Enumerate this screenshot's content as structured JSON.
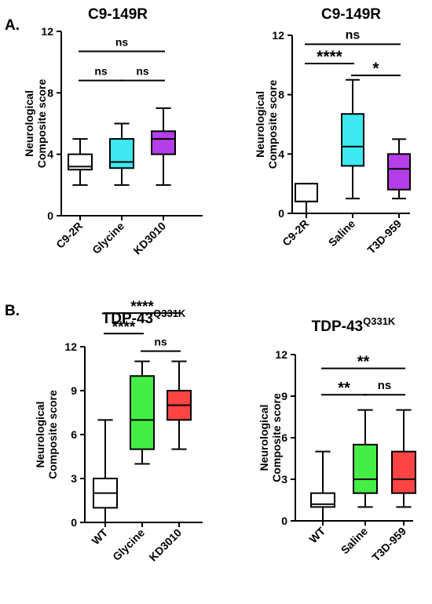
{
  "panels": [
    {
      "letter": "A."
    },
    {
      "letter": "B."
    }
  ],
  "chart_data": [
    {
      "type": "box",
      "panel": "A.",
      "title": "C9-149R",
      "title_sup": "",
      "ylabel": "Neurological Composite score",
      "ylabel_lines": [
        "Neurological",
        "Composite score"
      ],
      "ylim": [
        0,
        12
      ],
      "yticks": [
        0,
        4,
        8,
        12
      ],
      "categories": [
        "C9-2R",
        "Glycine",
        "KD3010"
      ],
      "colors": [
        "#ffffff",
        "#3de8f0",
        "#b53ee8"
      ],
      "boxes": [
        {
          "min": 2,
          "q1": 3,
          "median": 3.2,
          "q3": 4,
          "max": 5
        },
        {
          "min": 2,
          "q1": 3.1,
          "median": 3.5,
          "q3": 5,
          "max": 6
        },
        {
          "min": 2,
          "q1": 4,
          "median": 5,
          "q3": 5.5,
          "max": 7
        }
      ],
      "comparisons": [
        {
          "from": 0,
          "to": 2,
          "label": "ns",
          "y": 10.7
        },
        {
          "from": 0,
          "to": 1,
          "label": "ns",
          "y": 8.8
        },
        {
          "from": 1,
          "to": 2,
          "label": "ns",
          "y": 8.8
        }
      ]
    },
    {
      "type": "box",
      "panel": "A.",
      "title": "C9-149R",
      "title_sup": "",
      "ylabel": "Neurological Composite score",
      "ylabel_lines": [
        "Neurological",
        "Composite score"
      ],
      "ylim": [
        0,
        12
      ],
      "yticks": [
        0,
        4,
        8,
        12
      ],
      "categories": [
        "C9-2R",
        "Saline",
        "T3D-959"
      ],
      "colors": [
        "#ffffff",
        "#3de8f0",
        "#b53ee8"
      ],
      "boxes": [
        {
          "min": 0,
          "q1": 0.8,
          "median": 0.8,
          "q3": 2,
          "max": 2
        },
        {
          "min": 1,
          "q1": 3.2,
          "median": 4.5,
          "q3": 6.7,
          "max": 9
        },
        {
          "min": 1,
          "q1": 1.6,
          "median": 3,
          "q3": 4,
          "max": 5
        }
      ],
      "comparisons": [
        {
          "from": 0,
          "to": 2,
          "label": "ns",
          "y": 11.4
        },
        {
          "from": 0,
          "to": 1,
          "label": "****",
          "y": 10.1
        },
        {
          "from": 1,
          "to": 2,
          "label": "*",
          "y": 9.3
        }
      ]
    },
    {
      "type": "box",
      "panel": "B.",
      "title": "TDP-43",
      "title_sup": "Q331K",
      "ylabel": "Neurological Composite score",
      "ylabel_lines": [
        "Neurological",
        "Composite score"
      ],
      "ylim": [
        0,
        12
      ],
      "yticks": [
        0,
        3,
        6,
        9,
        12
      ],
      "categories": [
        "WT",
        "Glycine",
        "KD3010"
      ],
      "colors": [
        "#ffffff",
        "#44ee44",
        "#ff4444"
      ],
      "boxes": [
        {
          "min": 0,
          "q1": 1,
          "median": 2,
          "q3": 3,
          "max": 7
        },
        {
          "min": 4,
          "q1": 5,
          "median": 7,
          "q3": 10,
          "max": 11
        },
        {
          "min": 5,
          "q1": 7,
          "median": 8,
          "q3": 9,
          "max": 11
        }
      ],
      "comparisons": [
        {
          "from": 0,
          "to": 2,
          "label": "****",
          "y": 14.3
        },
        {
          "from": 0,
          "to": 1,
          "label": "****",
          "y": 12.9
        },
        {
          "from": 1,
          "to": 2,
          "label": "ns",
          "y": 11.7
        }
      ]
    },
    {
      "type": "box",
      "panel": "B.",
      "title": "TDP-43",
      "title_sup": "Q331K",
      "ylabel": "Neurological Composite score",
      "ylabel_lines": [
        "Neurological",
        "Composite score"
      ],
      "ylim": [
        0,
        12
      ],
      "yticks": [
        0,
        3,
        6,
        9,
        12
      ],
      "categories": [
        "WT",
        "Saline",
        "T3D-959"
      ],
      "colors": [
        "#ffffff",
        "#44ee44",
        "#ff4444"
      ],
      "boxes": [
        {
          "min": 0,
          "q1": 1,
          "median": 1.2,
          "q3": 2,
          "max": 5
        },
        {
          "min": 1,
          "q1": 2,
          "median": 3,
          "q3": 5.5,
          "max": 8
        },
        {
          "min": 1,
          "q1": 2,
          "median": 3,
          "q3": 5,
          "max": 8
        }
      ],
      "comparisons": [
        {
          "from": 0,
          "to": 2,
          "label": "**",
          "y": 11
        },
        {
          "from": 0,
          "to": 1,
          "label": "**",
          "y": 9.1
        },
        {
          "from": 1,
          "to": 2,
          "label": "ns",
          "y": 9.1
        }
      ]
    }
  ]
}
